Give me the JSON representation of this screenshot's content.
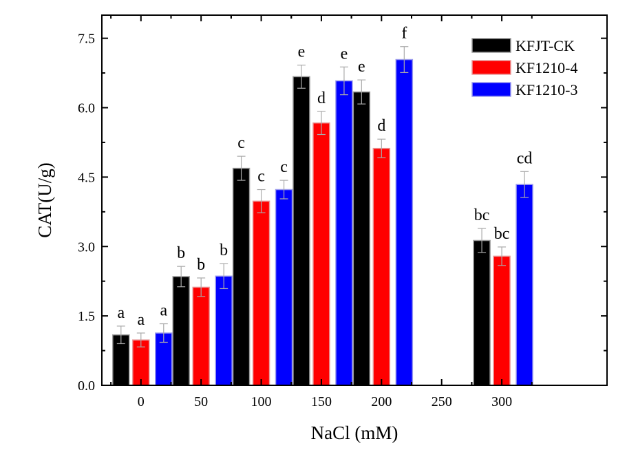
{
  "chart_data": {
    "type": "bar",
    "title": "",
    "xlabel": "NaCl (mM)",
    "ylabel": "CAT(U/g)",
    "ylim": [
      0,
      8.0
    ],
    "xlim": [
      -32.5,
      387.5
    ],
    "yticks": [
      "0.0",
      "1.5",
      "3.0",
      "4.5",
      "6.0",
      "7.5"
    ],
    "categories": [
      "0",
      "50",
      "100",
      "150",
      "200",
      "250",
      "300"
    ],
    "legend_position": "top-right",
    "grid": false,
    "series": [
      {
        "name": "KFJT-CK",
        "color": "#000000",
        "values": [
          1.09,
          2.35,
          4.69,
          6.67,
          6.34,
          null,
          3.13
        ],
        "errors": [
          0.19,
          0.22,
          0.26,
          0.25,
          0.26,
          null,
          0.26
        ],
        "labels": [
          "a",
          "b",
          "c",
          "e",
          "e",
          "",
          "bc"
        ]
      },
      {
        "name": "KF1210-4",
        "color": "#ff0000",
        "values": [
          0.98,
          2.12,
          3.98,
          5.67,
          5.12,
          null,
          2.79
        ],
        "errors": [
          0.15,
          0.2,
          0.25,
          0.25,
          0.2,
          null,
          0.2
        ],
        "labels": [
          "a",
          "b",
          "c",
          "d",
          "d",
          "",
          "bc"
        ]
      },
      {
        "name": "KF1210-3",
        "color": "#0000ff",
        "values": [
          1.13,
          2.36,
          4.23,
          6.58,
          7.04,
          null,
          4.34
        ],
        "errors": [
          0.2,
          0.27,
          0.2,
          0.3,
          0.28,
          null,
          0.28
        ],
        "labels": [
          "a",
          "b",
          "c",
          "e",
          "f",
          "",
          "cd"
        ]
      }
    ]
  }
}
